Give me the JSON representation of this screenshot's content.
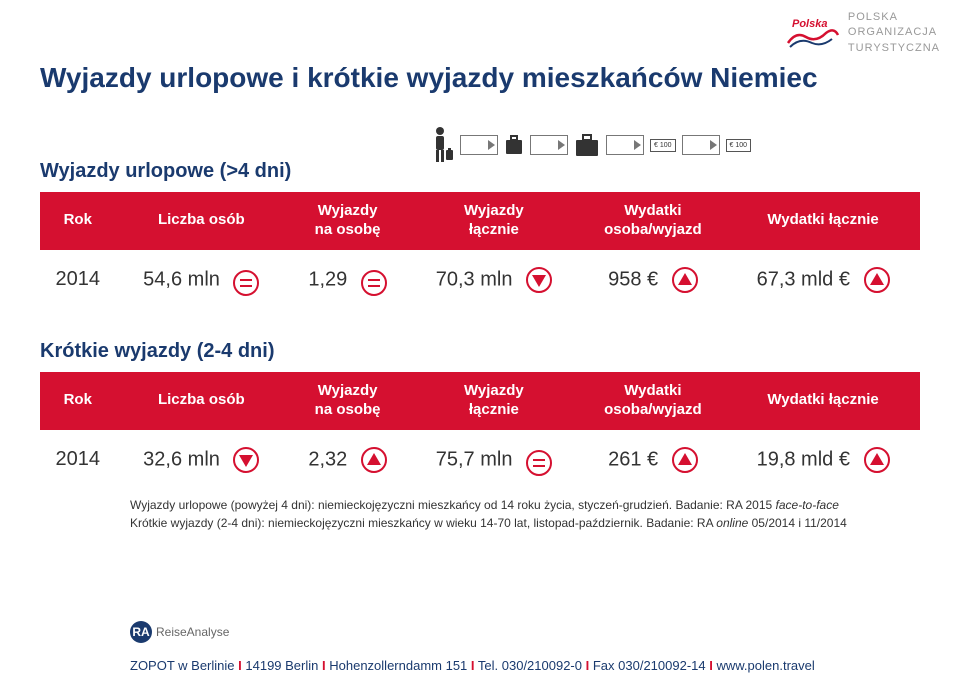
{
  "brand": {
    "org_line1": "POLSKA",
    "org_line2": "ORGANIZACJA",
    "org_line3": "TURYSTYCZNA"
  },
  "title": "Wyjazdy urlopowe i krótkie wyjazdy mieszkańców Niemiec",
  "subtitle1": "Wyjazdy urlopowe (>4 dni)",
  "subtitle2": "Krótkie wyjazdy (2-4 dni)",
  "money_badge": "€ 100",
  "table_headers": {
    "col1": "Rok",
    "col2": "Liczba osób",
    "col3": "Wyjazdy\nna osobę",
    "col4": "Wyjazdy\nłącznie",
    "col5": "Wydatki\nosoba/wyjazd",
    "col6": "Wydatki łącznie"
  },
  "table1_row": {
    "year": "2014",
    "people": "54,6 mln",
    "people_ind": "eq",
    "per_person": "1,29",
    "per_person_ind": "eq",
    "total_trips": "70,3 mln",
    "total_trips_ind": "down",
    "spend_per": "958 €",
    "spend_per_ind": "up",
    "spend_total": "67,3 mld €",
    "spend_total_ind": "up"
  },
  "table2_row": {
    "year": "2014",
    "people": "32,6 mln",
    "people_ind": "down",
    "per_person": "2,32",
    "per_person_ind": "up",
    "total_trips": "75,7 mln",
    "total_trips_ind": "eq",
    "spend_per": "261 €",
    "spend_per_ind": "up",
    "spend_total": "19,8 mld €",
    "spend_total_ind": "up"
  },
  "footnote": {
    "line1a": "Wyjazdy urlopowe (powyżej 4 dni): niemieckojęzyczni mieszkańcy od 14 roku życia, styczeń-grudzień. Badanie: RA 2015 ",
    "line1b": "face-to-face",
    "line2a": "Krótkie wyjazdy (2-4 dni): niemieckojęzyczni mieszkańcy w wieku 14-70 lat, listopad-październik. Badanie: RA ",
    "line2b": "online",
    "line2c": " 05/2014 i 11/2014"
  },
  "ra_logo": {
    "badge": "RA",
    "text": "ReiseAnalyse"
  },
  "footer": {
    "p1": "ZOPOT w Berlinie ",
    "p2": " 14199 Berlin ",
    "p3": " Hohenzollerndamm 151 ",
    "p4": " Tel. 030/210092-0 ",
    "p5": " Fax 030/210092-14 ",
    "p6": " www.polen.travel"
  },
  "colors": {
    "brand_red": "#d51030",
    "brand_navy": "#1a3a6e",
    "text": "#333333",
    "grey": "#999999"
  }
}
